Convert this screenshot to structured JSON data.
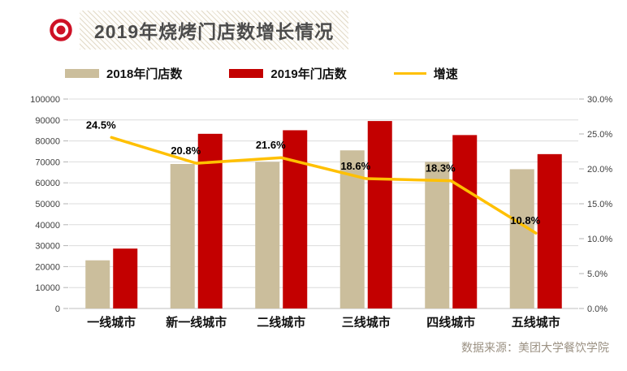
{
  "header": {
    "title": "2019年烧烤门店数增长情况"
  },
  "legend": [
    {
      "label": "2018年门店数",
      "type": "swatch",
      "color": "#CBBE9C"
    },
    {
      "label": "2019年门店数",
      "type": "swatch",
      "color": "#C30000"
    },
    {
      "label": "增速",
      "type": "line",
      "color": "#FFC000"
    }
  ],
  "source": "数据来源：美团大学餐饮学院",
  "colors": {
    "bar_2018": "#CBBE9C",
    "bar_2019": "#C30000",
    "growth_line": "#FFC000",
    "bullseye_icon": "#CE1126",
    "title_text": "#4C4C4C",
    "source_text": "#9B9183",
    "gridline": "#DCDCDC"
  },
  "chart_data": {
    "type": "bar",
    "subtype": "grouped-bars-with-line",
    "title": "2019年烧烤门店数增长情况",
    "categories": [
      "一线城市",
      "新一线城市",
      "二线城市",
      "三线城市",
      "四线城市",
      "五线城市"
    ],
    "series": [
      {
        "name": "2018年门店数",
        "type": "bar",
        "axis": "left",
        "color": "#CBBE9C",
        "values": [
          23000,
          69000,
          70000,
          75500,
          70000,
          66500
        ]
      },
      {
        "name": "2019年门店数",
        "type": "bar",
        "axis": "left",
        "color": "#C30000",
        "values": [
          28600,
          83400,
          85100,
          89500,
          82800,
          73700
        ]
      },
      {
        "name": "增速",
        "type": "line",
        "axis": "right",
        "color": "#FFC000",
        "values": [
          24.5,
          20.8,
          21.6,
          18.6,
          18.3,
          10.8
        ],
        "labels": [
          "24.5%",
          "20.8%",
          "21.6%",
          "18.6%",
          "18.3%",
          "10.8%"
        ]
      }
    ],
    "left_axis": {
      "min": 0,
      "max": 100000,
      "step": 10000,
      "tick_labels": [
        "0",
        "10000",
        "20000",
        "30000",
        "40000",
        "50000",
        "60000",
        "70000",
        "80000",
        "90000",
        "100000"
      ]
    },
    "right_axis": {
      "min": 0,
      "max": 30,
      "step": 5,
      "format": "percent",
      "tick_labels": [
        "0.0%",
        "5.0%",
        "10.0%",
        "15.0%",
        "20.0%",
        "25.0%",
        "30.0%"
      ]
    },
    "grid": true,
    "legend_position": "top",
    "source": "数据来源：美团大学餐饮学院"
  }
}
